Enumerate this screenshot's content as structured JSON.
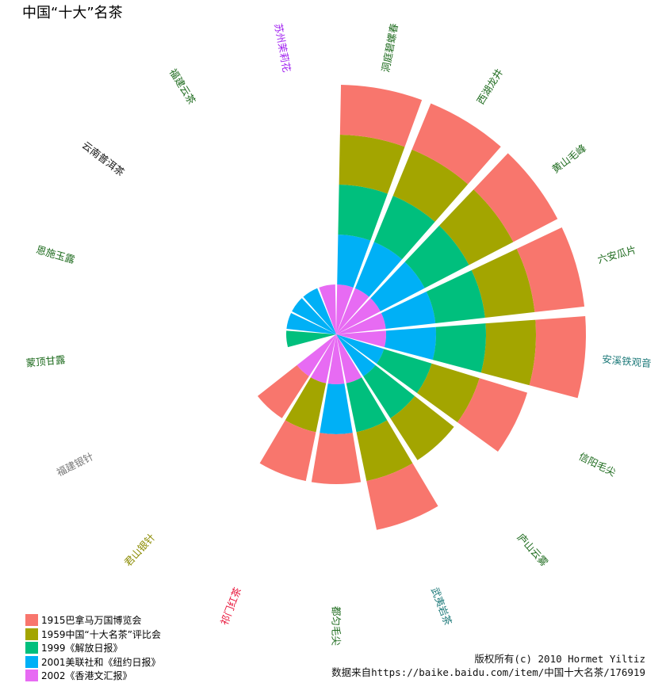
{
  "title": "中国“十大”名茶",
  "caption": {
    "copyright": "版权所有(c) 2010 Hormet Yiltiz",
    "source": "数据来自https://baike.baidu.com/item/中国十大名茶/176919"
  },
  "chart_data": {
    "type": "polar-stacked-bar",
    "title": "中国“十大”名茶",
    "legend_position": "bottom-left",
    "grid": false,
    "series": [
      {
        "name": "1915巴拿马万国博览会",
        "color": "#F8766D"
      },
      {
        "name": "1959中国“十大名茶”评比会",
        "color": "#A3A500"
      },
      {
        "name": "1999《解放日报》",
        "color": "#00BF7D"
      },
      {
        "name": "2001美联社和《纽约日报》",
        "color": "#00B0F6"
      },
      {
        "name": "2002《香港文汇报》",
        "color": "#E76BF3"
      }
    ],
    "categories": [
      {
        "name": "洞庭碧螺春",
        "color": "#1e6b1e",
        "included": [
          1,
          1,
          1,
          1,
          1
        ]
      },
      {
        "name": "西湖龙井",
        "color": "#1e6b1e",
        "included": [
          1,
          1,
          1,
          1,
          1
        ]
      },
      {
        "name": "黄山毛峰",
        "color": "#1e6b1e",
        "included": [
          1,
          1,
          1,
          1,
          1
        ]
      },
      {
        "name": "六安瓜片",
        "color": "#1e6b1e",
        "included": [
          1,
          1,
          1,
          1,
          1
        ]
      },
      {
        "name": "安溪铁观音",
        "color": "#1e7a7a",
        "included": [
          1,
          1,
          1,
          1,
          1
        ]
      },
      {
        "name": "信阳毛尖",
        "color": "#1e6b1e",
        "included": [
          1,
          1,
          1,
          1,
          0
        ]
      },
      {
        "name": "庐山云雾",
        "color": "#1e6b1e",
        "included": [
          0,
          1,
          1,
          1,
          0
        ]
      },
      {
        "name": "武夷岩茶",
        "color": "#1e7a7a",
        "included": [
          1,
          1,
          1,
          0,
          1
        ]
      },
      {
        "name": "都匀毛尖",
        "color": "#1e6b1e",
        "included": [
          1,
          0,
          0,
          1,
          1
        ]
      },
      {
        "name": "祁门红茶",
        "color": "#e8173c",
        "included": [
          1,
          1,
          0,
          0,
          1
        ]
      },
      {
        "name": "君山银针",
        "color": "#8a8a00",
        "included": [
          1,
          0,
          0,
          0,
          1
        ]
      },
      {
        "name": "福建银针",
        "color": "#777777",
        "included": [
          0,
          0,
          0,
          0,
          0
        ]
      },
      {
        "name": "蒙顶甘露",
        "color": "#1e6b1e",
        "included": [
          0,
          0,
          1,
          0,
          0
        ]
      },
      {
        "name": "恩施玉露",
        "color": "#1e6b1e",
        "included": [
          0,
          0,
          0,
          1,
          0
        ]
      },
      {
        "name": "云南普洱茶",
        "color": "#111111",
        "included": [
          0,
          0,
          0,
          1,
          0
        ]
      },
      {
        "name": "福建云茶",
        "color": "#1e6b1e",
        "included": [
          0,
          0,
          0,
          1,
          0
        ]
      },
      {
        "name": "苏州茉莉花",
        "color": "#a020f0",
        "included": [
          0,
          0,
          0,
          0,
          1
        ]
      }
    ]
  }
}
